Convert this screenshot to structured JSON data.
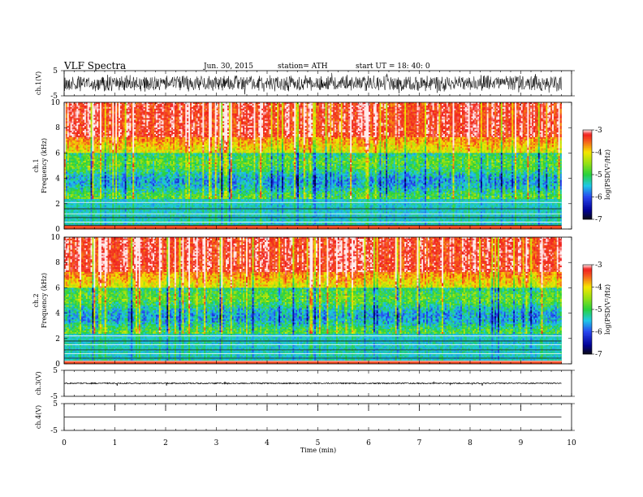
{
  "header": {
    "title": "VLF Spectra",
    "date": "Jun. 30, 2015",
    "station": "station= ATH",
    "start": "start UT =   18: 40: 0"
  },
  "chart_data": [
    {
      "type": "line",
      "ylabel": "ch.1(V)",
      "ylim": [
        -5,
        5
      ],
      "yticks": [
        "5",
        "-5"
      ],
      "xlim": [
        0,
        10
      ],
      "amplitude": 0.7
    },
    {
      "type": "heatmap",
      "ylabel_top": "ch.1",
      "ylabel": "Frequency (kHz)",
      "ylim": [
        0,
        10
      ],
      "yticks": [
        "10",
        "8",
        "6",
        "4",
        "2",
        "0"
      ],
      "xlim": [
        0,
        10
      ],
      "data_end_min": 9.8,
      "colorbar": {
        "label": "log(PSD(V²/Hz)",
        "range": [
          -7,
          -3
        ],
        "ticks": [
          "-3",
          "-4",
          "-5",
          "-6",
          "-7"
        ]
      }
    },
    {
      "type": "heatmap",
      "ylabel_top": "ch.2",
      "ylabel": "Frequency (kHz)",
      "ylim": [
        0,
        10
      ],
      "yticks": [
        "10",
        "8",
        "6",
        "4",
        "2",
        "0"
      ],
      "xlim": [
        0,
        10
      ],
      "data_end_min": 9.8,
      "colorbar": {
        "label": "log(PSD(V²/Hz)",
        "range": [
          -7,
          -3
        ],
        "ticks": [
          "-3",
          "-4",
          "-5",
          "-6",
          "-7"
        ]
      }
    },
    {
      "type": "line",
      "ylabel": "ch.3(V)",
      "ylim": [
        -5,
        5
      ],
      "yticks": [
        "5",
        "-5"
      ],
      "xlim": [
        0,
        10
      ],
      "amplitude": 0.05
    },
    {
      "type": "line",
      "ylabel": "ch.4(V)",
      "ylim": [
        -5,
        5
      ],
      "yticks": [
        "5",
        "-5"
      ],
      "xlim": [
        0,
        10
      ],
      "amplitude": 0.0
    }
  ],
  "xaxis": {
    "label": "Time (min)",
    "ticks": [
      "0",
      "1",
      "2",
      "3",
      "4",
      "5",
      "6",
      "7",
      "8",
      "9",
      "10"
    ]
  },
  "colors": {
    "red": "#ee2222",
    "yellow": "#f0e600",
    "green": "#22cc33",
    "cyan": "#22dddd",
    "blue": "#2244ee",
    "navy": "#000066"
  }
}
